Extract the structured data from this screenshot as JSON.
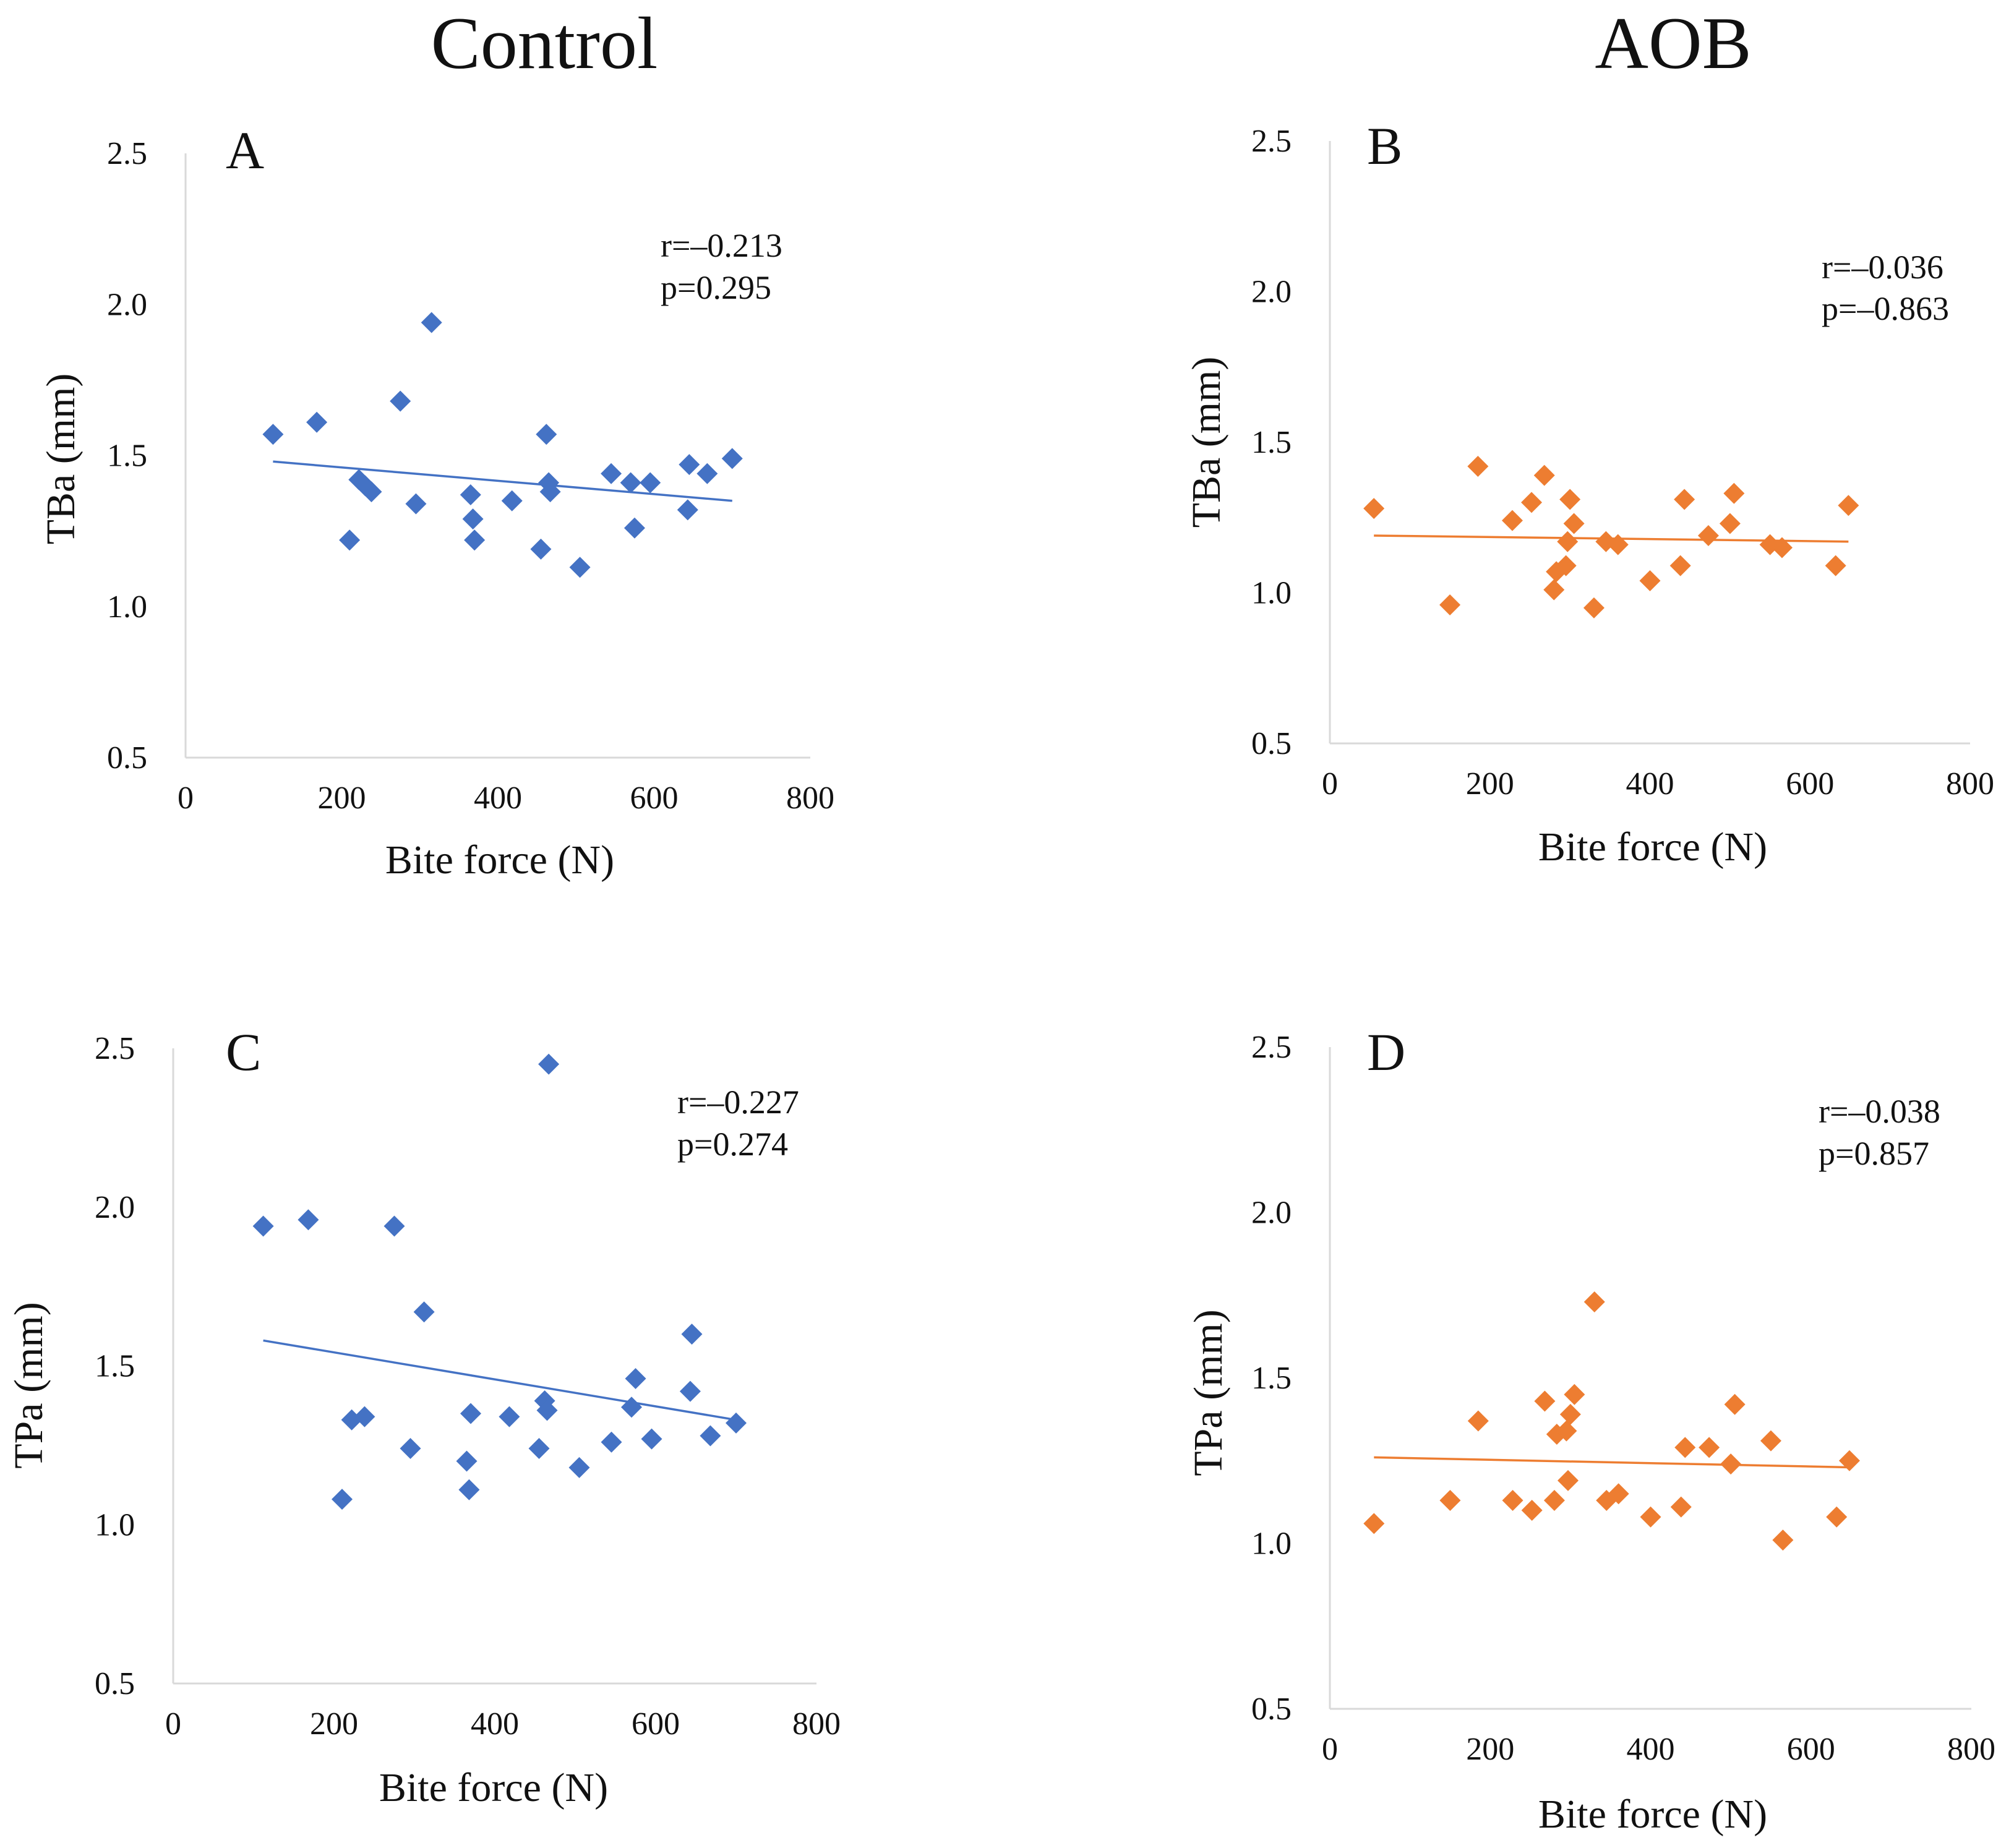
{
  "column_titles": {
    "left": "Control",
    "right": "AOB"
  },
  "colors": {
    "control": "#4472C4",
    "aob": "#ED7D31"
  },
  "chart_data": [
    {
      "type": "scatter",
      "panel": "A",
      "group": "Control",
      "xlabel": "Bite force (N)",
      "ylabel": "TBa (mm)",
      "xlim": [
        0,
        800
      ],
      "ylim": [
        0.5,
        2.5
      ],
      "x_ticks": [
        "0",
        "200",
        "400",
        "600",
        "800"
      ],
      "y_ticks": [
        "0.5",
        "1.0",
        "1.5",
        "2.0",
        "2.5"
      ],
      "r_text": "r=–0.213",
      "p_text": "p=0.295",
      "trendline": [
        [
          112,
          1.48
        ],
        [
          700,
          1.35
        ]
      ],
      "points": [
        [
          112,
          1.57
        ],
        [
          168,
          1.61
        ],
        [
          210,
          1.22
        ],
        [
          222,
          1.42
        ],
        [
          230,
          1.4
        ],
        [
          238,
          1.38
        ],
        [
          275,
          1.68
        ],
        [
          295,
          1.34
        ],
        [
          315,
          1.94
        ],
        [
          365,
          1.37
        ],
        [
          368,
          1.29
        ],
        [
          370,
          1.22
        ],
        [
          418,
          1.35
        ],
        [
          455,
          1.19
        ],
        [
          462,
          1.57
        ],
        [
          465,
          1.41
        ],
        [
          467,
          1.38
        ],
        [
          505,
          1.13
        ],
        [
          545,
          1.44
        ],
        [
          570,
          1.41
        ],
        [
          575,
          1.26
        ],
        [
          595,
          1.41
        ],
        [
          643,
          1.32
        ],
        [
          645,
          1.47
        ],
        [
          668,
          1.44
        ],
        [
          700,
          1.49
        ]
      ]
    },
    {
      "type": "scatter",
      "panel": "B",
      "group": "AOB",
      "xlabel": "Bite force (N)",
      "ylabel": "TBa (mm)",
      "xlim": [
        0,
        800
      ],
      "ylim": [
        0.5,
        2.5
      ],
      "x_ticks": [
        "0",
        "200",
        "400",
        "600",
        "800"
      ],
      "y_ticks": [
        "0.5",
        "1.0",
        "1.5",
        "2.0",
        "2.5"
      ],
      "r_text": "r=–0.036",
      "p_text": "p=–0.863",
      "trendline": [
        [
          55,
          1.19
        ],
        [
          648,
          1.17
        ]
      ],
      "points": [
        [
          55,
          1.28
        ],
        [
          150,
          0.96
        ],
        [
          185,
          1.42
        ],
        [
          228,
          1.24
        ],
        [
          252,
          1.3
        ],
        [
          268,
          1.39
        ],
        [
          280,
          1.01
        ],
        [
          283,
          1.07
        ],
        [
          295,
          1.09
        ],
        [
          297,
          1.17
        ],
        [
          300,
          1.31
        ],
        [
          305,
          1.23
        ],
        [
          330,
          0.95
        ],
        [
          345,
          1.17
        ],
        [
          360,
          1.16
        ],
        [
          400,
          1.04
        ],
        [
          438,
          1.09
        ],
        [
          443,
          1.31
        ],
        [
          473,
          1.19
        ],
        [
          500,
          1.23
        ],
        [
          505,
          1.33
        ],
        [
          550,
          1.16
        ],
        [
          565,
          1.15
        ],
        [
          632,
          1.09
        ],
        [
          648,
          1.29
        ]
      ]
    },
    {
      "type": "scatter",
      "panel": "C",
      "group": "Control",
      "xlabel": "Bite force (N)",
      "ylabel": "TPa (mm)",
      "xlim": [
        0,
        800
      ],
      "ylim": [
        0.5,
        2.5
      ],
      "x_ticks": [
        "0",
        "200",
        "400",
        "600",
        "800"
      ],
      "y_ticks": [
        "0.5",
        "1.0",
        "1.5",
        "2.0",
        "2.5"
      ],
      "r_text": "r=–0.227",
      "p_text": "p=0.274",
      "trendline": [
        [
          112,
          1.58
        ],
        [
          700,
          1.33
        ]
      ],
      "points": [
        [
          112,
          1.94
        ],
        [
          168,
          1.96
        ],
        [
          210,
          1.08
        ],
        [
          222,
          1.33
        ],
        [
          238,
          1.34
        ],
        [
          275,
          1.94
        ],
        [
          295,
          1.24
        ],
        [
          312,
          1.67
        ],
        [
          365,
          1.2
        ],
        [
          368,
          1.11
        ],
        [
          370,
          1.35
        ],
        [
          418,
          1.34
        ],
        [
          455,
          1.24
        ],
        [
          462,
          1.39
        ],
        [
          465,
          1.36
        ],
        [
          467,
          2.45
        ],
        [
          505,
          1.18
        ],
        [
          545,
          1.26
        ],
        [
          570,
          1.37
        ],
        [
          575,
          1.46
        ],
        [
          595,
          1.27
        ],
        [
          643,
          1.42
        ],
        [
          645,
          1.6
        ],
        [
          668,
          1.28
        ],
        [
          700,
          1.32
        ]
      ]
    },
    {
      "type": "scatter",
      "panel": "D",
      "group": "AOB",
      "xlabel": "Bite force (N)",
      "ylabel": "TPa (mm)",
      "xlim": [
        0,
        800
      ],
      "ylim": [
        0.5,
        2.5
      ],
      "x_ticks": [
        "0",
        "200",
        "400",
        "600",
        "800"
      ],
      "y_ticks": [
        "0.5",
        "1.0",
        "1.5",
        "2.0",
        "2.5"
      ],
      "r_text": "r=–0.038",
      "p_text": "p=0.857",
      "trendline": [
        [
          55,
          1.26
        ],
        [
          648,
          1.23
        ]
      ],
      "points": [
        [
          55,
          1.06
        ],
        [
          150,
          1.13
        ],
        [
          185,
          1.37
        ],
        [
          228,
          1.13
        ],
        [
          252,
          1.1
        ],
        [
          268,
          1.43
        ],
        [
          280,
          1.13
        ],
        [
          283,
          1.33
        ],
        [
          295,
          1.34
        ],
        [
          297,
          1.19
        ],
        [
          300,
          1.39
        ],
        [
          305,
          1.45
        ],
        [
          330,
          1.73
        ],
        [
          345,
          1.13
        ],
        [
          360,
          1.15
        ],
        [
          400,
          1.08
        ],
        [
          438,
          1.11
        ],
        [
          443,
          1.29
        ],
        [
          473,
          1.29
        ],
        [
          500,
          1.24
        ],
        [
          505,
          1.42
        ],
        [
          550,
          1.31
        ],
        [
          565,
          1.01
        ],
        [
          632,
          1.08
        ],
        [
          648,
          1.25
        ]
      ]
    }
  ]
}
